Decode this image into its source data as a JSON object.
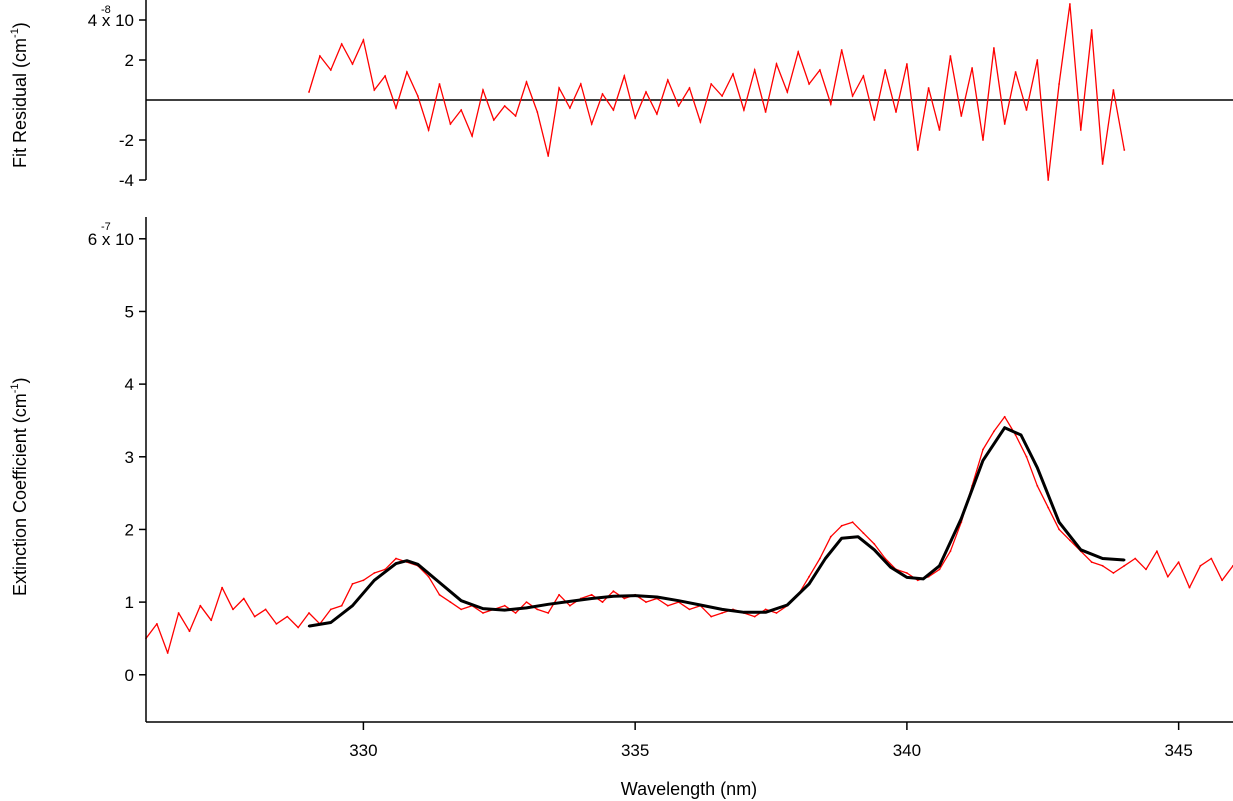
{
  "chart_data": [
    {
      "type": "line",
      "panel": "residual",
      "ylabel": "Fit Residual (cm",
      "ylabel_sup": "-1",
      "ylabel_close": ")",
      "xlim": [
        326,
        346
      ],
      "ylim": [
        -4e-08,
        5e-08
      ],
      "yticks": [
        -4e-08,
        -2e-08,
        2e-08,
        4e-08
      ],
      "ytick_labels": [
        "-4",
        "-2",
        "2",
        "4 x 10"
      ],
      "ytick_exponent": "-8",
      "zero_line": true,
      "colors": {
        "series": "#ff0000",
        "zero_line": "#000000"
      },
      "series": [
        {
          "x": [
            329.0,
            329.2,
            329.4,
            329.6,
            329.8,
            330.0,
            330.2,
            330.4,
            330.6,
            330.8,
            331.0,
            331.2,
            331.4,
            331.6,
            331.8,
            332.0,
            332.2,
            332.4,
            332.6,
            332.8,
            333.0,
            333.2,
            333.4,
            333.6,
            333.8,
            334.0,
            334.2,
            334.4,
            334.6,
            334.8,
            335.0,
            335.2,
            335.4,
            335.6,
            335.8,
            336.0,
            336.2,
            336.4,
            336.6,
            336.8,
            337.0,
            337.2,
            337.4,
            337.6,
            337.8,
            338.0,
            338.2,
            338.4,
            338.6,
            338.8,
            339.0,
            339.2,
            339.4,
            339.6,
            339.8,
            340.0,
            340.2,
            340.4,
            340.6,
            340.8,
            341.0,
            341.2,
            341.4,
            341.6,
            341.8,
            342.0,
            342.2,
            342.4,
            342.6,
            342.8,
            343.0,
            343.2,
            343.4,
            343.6,
            343.8,
            344.0
          ],
          "y": [
            4e-09,
            2.2e-08,
            1.5e-08,
            2.8e-08,
            1.8e-08,
            3e-08,
            5e-09,
            1.2e-08,
            -4e-09,
            1.4e-08,
            2e-09,
            -1.5e-08,
            8e-09,
            -1.2e-08,
            -5e-09,
            -1.8e-08,
            5e-09,
            -1e-08,
            -3e-09,
            -8e-09,
            9e-09,
            -6e-09,
            -2.8e-08,
            6e-09,
            -4e-09,
            8e-09,
            -1.2e-08,
            3e-09,
            -5e-09,
            1.2e-08,
            -9e-09,
            4e-09,
            -7e-09,
            1e-08,
            -3e-09,
            6e-09,
            -1.1e-08,
            8e-09,
            2e-09,
            1.3e-08,
            -5e-09,
            1.5e-08,
            -6e-09,
            1.8e-08,
            4e-09,
            2.4e-08,
            8e-09,
            1.5e-08,
            -2e-09,
            2.5e-08,
            2e-09,
            1.2e-08,
            -1e-08,
            1.5e-08,
            -6e-09,
            1.8e-08,
            -2.5e-08,
            6e-09,
            -1.5e-08,
            2.2e-08,
            -8e-09,
            1.6e-08,
            -2e-08,
            2.6e-08,
            -1.2e-08,
            1.4e-08,
            -5e-09,
            2e-08,
            -4e-08,
            8e-09,
            4.8e-08,
            -1.5e-08,
            3.5e-08,
            -3.2e-08,
            5e-09,
            -2.5e-08
          ]
        }
      ]
    },
    {
      "type": "line",
      "panel": "extinction",
      "xlabel": "Wavelength (nm)",
      "ylabel": "Extinction Coefficient (cm",
      "ylabel_sup": "-1",
      "ylabel_close": ")",
      "xlim": [
        326,
        346
      ],
      "ylim": [
        -6.5e-08,
        6.3e-07
      ],
      "xticks": [
        330,
        335,
        340,
        345
      ],
      "xtick_labels": [
        "330",
        "335",
        "340",
        "345"
      ],
      "yticks": [
        0,
        1e-07,
        2e-07,
        3e-07,
        4e-07,
        5e-07,
        6e-07
      ],
      "ytick_labels": [
        "0",
        "1",
        "2",
        "3",
        "4",
        "5",
        "6 x 10"
      ],
      "ytick_exponent": "-7",
      "colors": {
        "data": "#ff0000",
        "fit": "#000000"
      },
      "series": [
        {
          "role": "data",
          "x": [
            326.0,
            326.2,
            326.4,
            326.6,
            326.8,
            327.0,
            327.2,
            327.4,
            327.6,
            327.8,
            328.0,
            328.2,
            328.4,
            328.6,
            328.8,
            329.0,
            329.2,
            329.4,
            329.6,
            329.8,
            330.0,
            330.2,
            330.4,
            330.6,
            330.8,
            331.0,
            331.2,
            331.4,
            331.6,
            331.8,
            332.0,
            332.2,
            332.4,
            332.6,
            332.8,
            333.0,
            333.2,
            333.4,
            333.6,
            333.8,
            334.0,
            334.2,
            334.4,
            334.6,
            334.8,
            335.0,
            335.2,
            335.4,
            335.6,
            335.8,
            336.0,
            336.2,
            336.4,
            336.6,
            336.8,
            337.0,
            337.2,
            337.4,
            337.6,
            337.8,
            338.0,
            338.2,
            338.4,
            338.6,
            338.8,
            339.0,
            339.2,
            339.4,
            339.6,
            339.8,
            340.0,
            340.2,
            340.4,
            340.6,
            340.8,
            341.0,
            341.2,
            341.4,
            341.6,
            341.8,
            342.0,
            342.2,
            342.4,
            342.6,
            342.8,
            343.0,
            343.2,
            343.4,
            343.6,
            343.8,
            344.0,
            344.2,
            344.4,
            344.6,
            344.8,
            345.0,
            345.2,
            345.4,
            345.6,
            345.8,
            346.0
          ],
          "y": [
            5e-08,
            7e-08,
            3e-08,
            8.5e-08,
            6e-08,
            9.5e-08,
            7.5e-08,
            1.2e-07,
            9e-08,
            1.05e-07,
            8e-08,
            9e-08,
            7e-08,
            8e-08,
            6.5e-08,
            8.5e-08,
            7e-08,
            9e-08,
            9.5e-08,
            1.25e-07,
            1.3e-07,
            1.4e-07,
            1.45e-07,
            1.6e-07,
            1.55e-07,
            1.5e-07,
            1.35e-07,
            1.1e-07,
            1e-07,
            9e-08,
            9.5e-08,
            8.5e-08,
            9e-08,
            9.5e-08,
            8.5e-08,
            1e-07,
            9e-08,
            8.5e-08,
            1.1e-07,
            9.5e-08,
            1.05e-07,
            1.1e-07,
            1e-07,
            1.15e-07,
            1.05e-07,
            1.1e-07,
            1e-07,
            1.05e-07,
            9.5e-08,
            1e-07,
            9e-08,
            9.5e-08,
            8e-08,
            8.5e-08,
            9e-08,
            8.5e-08,
            8e-08,
            9e-08,
            8.5e-08,
            9.5e-08,
            1.1e-07,
            1.35e-07,
            1.6e-07,
            1.9e-07,
            2.05e-07,
            2.1e-07,
            1.95e-07,
            1.8e-07,
            1.6e-07,
            1.45e-07,
            1.4e-07,
            1.3e-07,
            1.35e-07,
            1.45e-07,
            1.7e-07,
            2.1e-07,
            2.6e-07,
            3.1e-07,
            3.35e-07,
            3.55e-07,
            3.3e-07,
            3e-07,
            2.6e-07,
            2.3e-07,
            2e-07,
            1.85e-07,
            1.7e-07,
            1.55e-07,
            1.5e-07,
            1.4e-07,
            1.5e-07,
            1.6e-07,
            1.45e-07,
            1.7e-07,
            1.35e-07,
            1.55e-07,
            1.2e-07,
            1.5e-07,
            1.6e-07,
            1.3e-07,
            1.5e-07
          ]
        },
        {
          "role": "fit",
          "x": [
            329.0,
            329.4,
            329.8,
            330.2,
            330.6,
            330.8,
            331.0,
            331.4,
            331.8,
            332.2,
            332.6,
            333.0,
            333.4,
            333.8,
            334.2,
            334.6,
            335.0,
            335.4,
            335.8,
            336.2,
            336.6,
            337.0,
            337.4,
            337.8,
            338.2,
            338.5,
            338.8,
            339.1,
            339.4,
            339.7,
            340.0,
            340.3,
            340.6,
            341.0,
            341.4,
            341.8,
            342.1,
            342.4,
            342.8,
            343.2,
            343.6,
            344.0
          ],
          "y": [
            6.7e-08,
            7.2e-08,
            9.5e-08,
            1.3e-07,
            1.53e-07,
            1.57e-07,
            1.52e-07,
            1.27e-07,
            1.02e-07,
            9.1e-08,
            8.9e-08,
            9.2e-08,
            9.7e-08,
            1.01e-07,
            1.05e-07,
            1.08e-07,
            1.09e-07,
            1.07e-07,
            1.02e-07,
            9.6e-08,
            9e-08,
            8.6e-08,
            8.6e-08,
            9.6e-08,
            1.25e-07,
            1.6e-07,
            1.88e-07,
            1.9e-07,
            1.72e-07,
            1.48e-07,
            1.34e-07,
            1.32e-07,
            1.5e-07,
            2.15e-07,
            2.95e-07,
            3.4e-07,
            3.3e-07,
            2.85e-07,
            2.1e-07,
            1.72e-07,
            1.6e-07,
            1.58e-07
          ]
        }
      ]
    }
  ]
}
